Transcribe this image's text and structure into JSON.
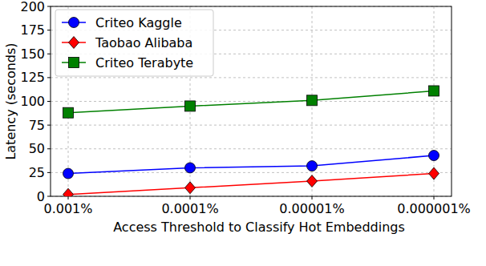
{
  "chart_data": {
    "type": "line",
    "x_label": "Access Threshold to Classify Hot Embeddings",
    "y_label": "Latency (seconds)",
    "categories": [
      "0.001%",
      "0.0001%",
      "0.00001%",
      "0.000001%"
    ],
    "series": [
      {
        "name": "Criteo Kaggle",
        "color": "#0000ff",
        "marker": "circle",
        "values": [
          24,
          30,
          32,
          43
        ]
      },
      {
        "name": "Taobao Alibaba",
        "color": "#ff0000",
        "marker": "diamond",
        "values": [
          2,
          9,
          16,
          24
        ]
      },
      {
        "name": "Criteo Terabyte",
        "color": "#008000",
        "marker": "square",
        "values": [
          88,
          95,
          101,
          111
        ]
      }
    ],
    "ylim": [
      0,
      200
    ],
    "yticks": [
      0,
      25,
      50,
      75,
      100,
      125,
      150,
      175,
      200
    ],
    "grid": true,
    "legend": "upper left"
  }
}
